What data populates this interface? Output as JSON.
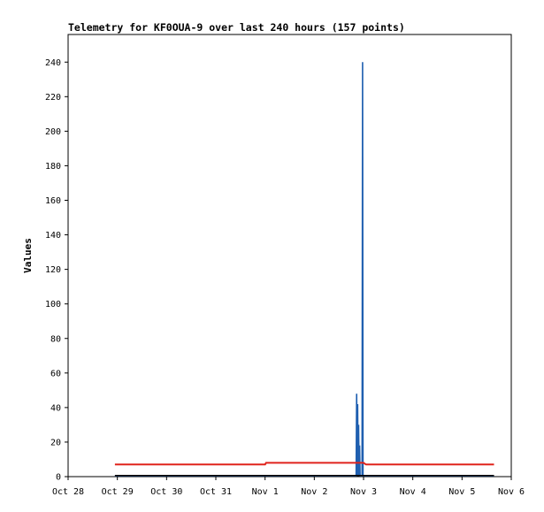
{
  "chart_data": {
    "type": "line",
    "title": "Telemetry for KF0OUA-9 over last 240 hours (157 points)",
    "xlabel": "",
    "ylabel": "Values",
    "x_ticks": [
      "Oct 28",
      "Oct 29",
      "Oct 30",
      "Oct 31",
      "Nov 1",
      "Nov 2",
      "Nov 3",
      "Nov 4",
      "Nov 5",
      "Nov 6"
    ],
    "y_ticks": [
      0,
      20,
      40,
      60,
      80,
      100,
      120,
      140,
      160,
      180,
      200,
      220,
      240
    ],
    "xlim": [
      0,
      9
    ],
    "ylim": [
      0,
      256
    ],
    "grid": false,
    "legend": "none",
    "series": [
      {
        "color": "#1f5fb0",
        "points": [
          [
            0.95,
            0.4
          ],
          [
            2.0,
            0.4
          ],
          [
            3.0,
            0.4
          ],
          [
            4.0,
            0.4
          ],
          [
            5.0,
            0.4
          ],
          [
            5.85,
            0.4
          ],
          [
            5.86,
            48
          ],
          [
            5.87,
            0.4
          ],
          [
            5.88,
            42
          ],
          [
            5.89,
            0.4
          ],
          [
            5.9,
            30
          ],
          [
            5.91,
            0.4
          ],
          [
            5.92,
            18
          ],
          [
            5.93,
            0.4
          ],
          [
            5.94,
            0.4
          ],
          [
            5.97,
            0.4
          ],
          [
            5.98,
            240
          ],
          [
            5.99,
            0.4
          ],
          [
            7.0,
            0.4
          ],
          [
            8.0,
            0.4
          ],
          [
            8.65,
            0.4
          ]
        ]
      },
      {
        "color": "#000000",
        "points": [
          [
            0.95,
            0.6
          ],
          [
            8.65,
            0.6
          ]
        ]
      },
      {
        "color": "#e0231c",
        "points": [
          [
            0.95,
            7.0
          ],
          [
            4.0,
            7.0
          ],
          [
            4.02,
            8.0
          ],
          [
            5.5,
            8.0
          ],
          [
            6.0,
            8.0
          ],
          [
            6.05,
            7.0
          ],
          [
            8.65,
            7.0
          ]
        ]
      }
    ]
  }
}
